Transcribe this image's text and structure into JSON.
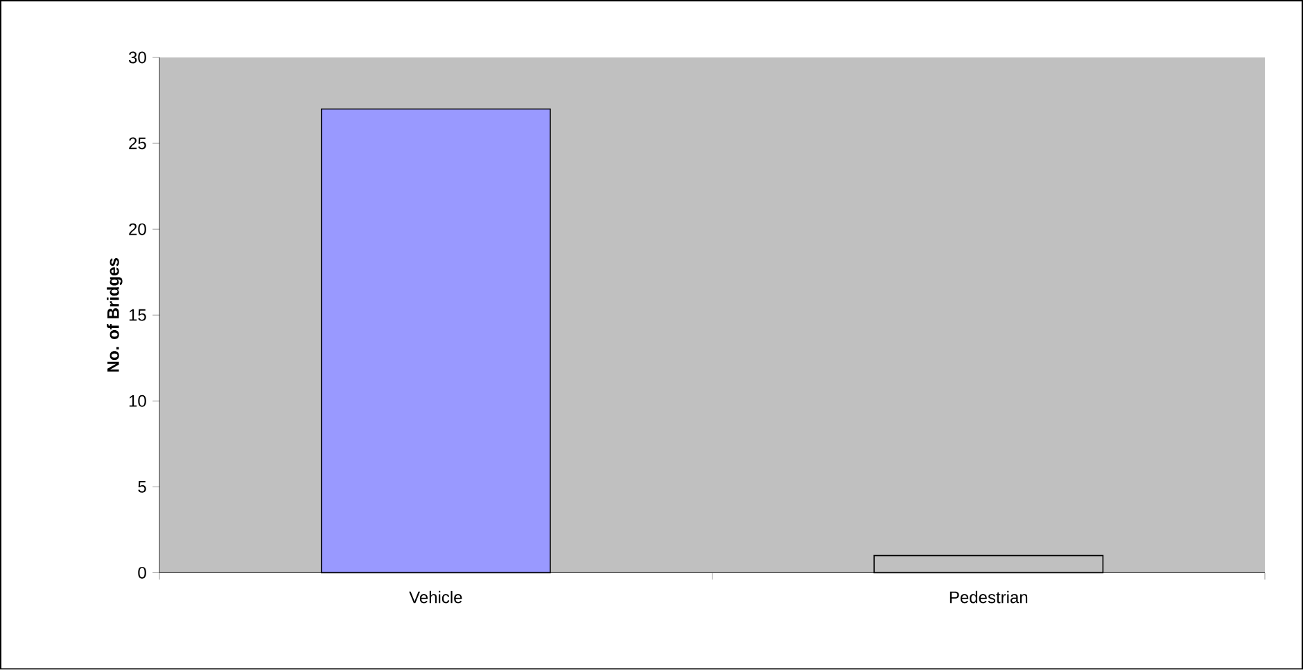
{
  "chart_data": {
    "type": "bar",
    "ylabel": "No. of Bridges",
    "categories": [
      "Vehicle",
      "Pedestrian"
    ],
    "values": [
      27,
      1
    ],
    "colors": [
      "#9999ff",
      "#c0c0c0"
    ],
    "ylim": [
      0,
      30
    ],
    "yticks": [
      0,
      5,
      10,
      15,
      20,
      25,
      30
    ]
  }
}
